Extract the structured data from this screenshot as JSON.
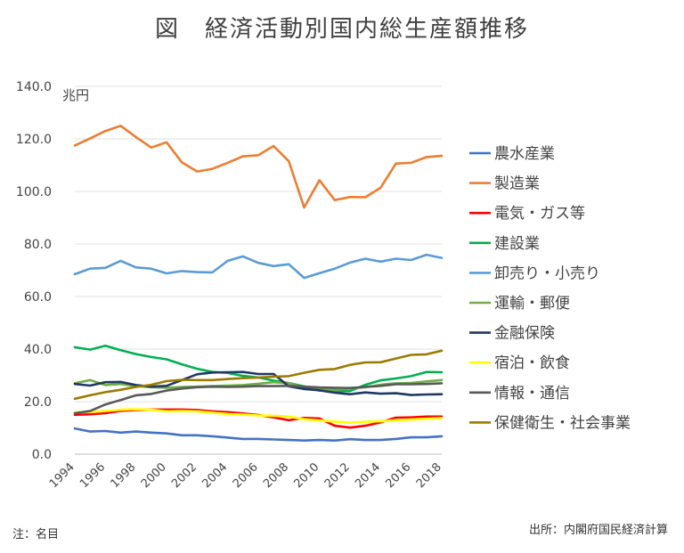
{
  "title": "図　経済活動別国内総生産額推移",
  "note": "注：名目",
  "source": "出所：内閣府国民経済計算",
  "chart_data": {
    "type": "line",
    "title": "図　経済活動別国内総生産額推移",
    "unit_label": "兆円",
    "xlabel": "",
    "ylabel": "",
    "ylim": [
      0,
      140
    ],
    "y_ticks": [
      "0.0",
      "20.0",
      "40.0",
      "60.0",
      "80.0",
      "100.0",
      "120.0",
      "140.0"
    ],
    "x": [
      1994,
      1995,
      1996,
      1997,
      1998,
      1999,
      2000,
      2001,
      2002,
      2003,
      2004,
      2005,
      2006,
      2007,
      2008,
      2009,
      2010,
      2011,
      2012,
      2013,
      2014,
      2015,
      2016,
      2017,
      2018
    ],
    "x_ticks": [
      "1994",
      "1996",
      "1998",
      "2000",
      "2002",
      "2004",
      "2006",
      "2008",
      "2010",
      "2012",
      "2014",
      "2016",
      "2018"
    ],
    "grid": "horizontal",
    "legend_position": "right",
    "series": [
      {
        "name": "農水産業",
        "color": "#4472c4",
        "values": [
          9.8,
          8.6,
          8.8,
          8.2,
          8.6,
          8.2,
          7.9,
          7.2,
          7.2,
          6.8,
          6.3,
          5.8,
          5.8,
          5.6,
          5.4,
          5.2,
          5.4,
          5.2,
          5.7,
          5.4,
          5.4,
          5.8,
          6.4,
          6.4,
          6.8
        ]
      },
      {
        "name": "製造業",
        "color": "#ed7d31",
        "values": [
          117.5,
          120.2,
          123.0,
          125.0,
          120.7,
          116.7,
          118.7,
          111.1,
          107.6,
          108.6,
          110.9,
          113.4,
          113.8,
          117.3,
          111.5,
          93.9,
          104.3,
          96.7,
          97.9,
          97.8,
          101.4,
          110.6,
          110.9,
          113.1,
          113.6
        ]
      },
      {
        "name": "電気・ガス等",
        "color": "#ff0000",
        "values": [
          15.0,
          15.2,
          15.6,
          16.5,
          16.8,
          17.0,
          17.0,
          17.0,
          16.8,
          16.3,
          16.0,
          15.5,
          14.9,
          14.0,
          12.9,
          13.8,
          13.6,
          10.8,
          10.1,
          10.8,
          12.1,
          13.9,
          14.0,
          14.3,
          14.3
        ]
      },
      {
        "name": "建設業",
        "color": "#00b050",
        "values": [
          40.7,
          39.8,
          41.3,
          39.6,
          38.1,
          37.0,
          36.1,
          34.2,
          32.5,
          31.3,
          30.9,
          29.8,
          29.2,
          28.0,
          27.1,
          25.8,
          24.2,
          24.0,
          24.0,
          26.4,
          28.1,
          28.8,
          29.7,
          31.3,
          31.2
        ]
      },
      {
        "name": "卸売り・小売り",
        "color": "#5b9bd5",
        "values": [
          68.5,
          70.6,
          70.9,
          73.6,
          71.1,
          70.6,
          68.8,
          69.7,
          69.3,
          69.2,
          73.6,
          75.3,
          72.8,
          71.6,
          72.3,
          67.1,
          68.9,
          70.6,
          72.9,
          74.4,
          73.3,
          74.4,
          73.9,
          75.9,
          74.7
        ]
      },
      {
        "name": "運輸・郵便",
        "color": "#70ad47",
        "values": [
          27.0,
          28.2,
          26.3,
          26.7,
          25.9,
          25.5,
          25.3,
          25.6,
          25.7,
          25.9,
          26.1,
          26.3,
          26.8,
          27.4,
          27.0,
          25.4,
          24.7,
          24.5,
          25.0,
          25.5,
          26.4,
          27.0,
          27.1,
          27.7,
          28.2
        ]
      },
      {
        "name": "金融保険",
        "color": "#203864",
        "values": [
          26.7,
          26.1,
          27.4,
          27.5,
          26.3,
          25.7,
          26.0,
          28.2,
          30.4,
          31.1,
          31.2,
          31.3,
          30.5,
          30.5,
          25.8,
          24.8,
          24.3,
          23.4,
          22.8,
          23.5,
          23.0,
          23.2,
          22.5,
          22.7,
          22.8
        ]
      },
      {
        "name": "宿泊・飲食",
        "color": "#ffff00",
        "values": [
          15.9,
          16.0,
          16.4,
          16.9,
          17.1,
          16.9,
          16.3,
          16.4,
          16.3,
          15.8,
          15.3,
          15.1,
          14.7,
          14.6,
          14.3,
          13.3,
          12.8,
          12.4,
          12.0,
          12.3,
          12.5,
          12.9,
          13.2,
          13.5,
          13.7
        ]
      },
      {
        "name": "情報・通信",
        "color": "#595959",
        "values": [
          15.6,
          16.4,
          18.9,
          20.6,
          22.4,
          22.9,
          24.2,
          25.0,
          25.5,
          25.7,
          25.6,
          25.7,
          25.9,
          25.9,
          26.0,
          25.7,
          25.4,
          25.3,
          25.2,
          25.6,
          26.0,
          26.6,
          26.6,
          26.7,
          27.0
        ]
      },
      {
        "name": "保健衛生・社会事業",
        "color": "#9c7a00",
        "values": [
          21.1,
          22.4,
          23.6,
          24.5,
          25.6,
          26.4,
          27.8,
          28.3,
          28.2,
          28.2,
          28.6,
          28.9,
          29.2,
          29.5,
          29.7,
          31.0,
          32.1,
          32.4,
          34.0,
          34.9,
          35.0,
          36.4,
          37.8,
          38.0,
          39.4
        ]
      }
    ]
  }
}
